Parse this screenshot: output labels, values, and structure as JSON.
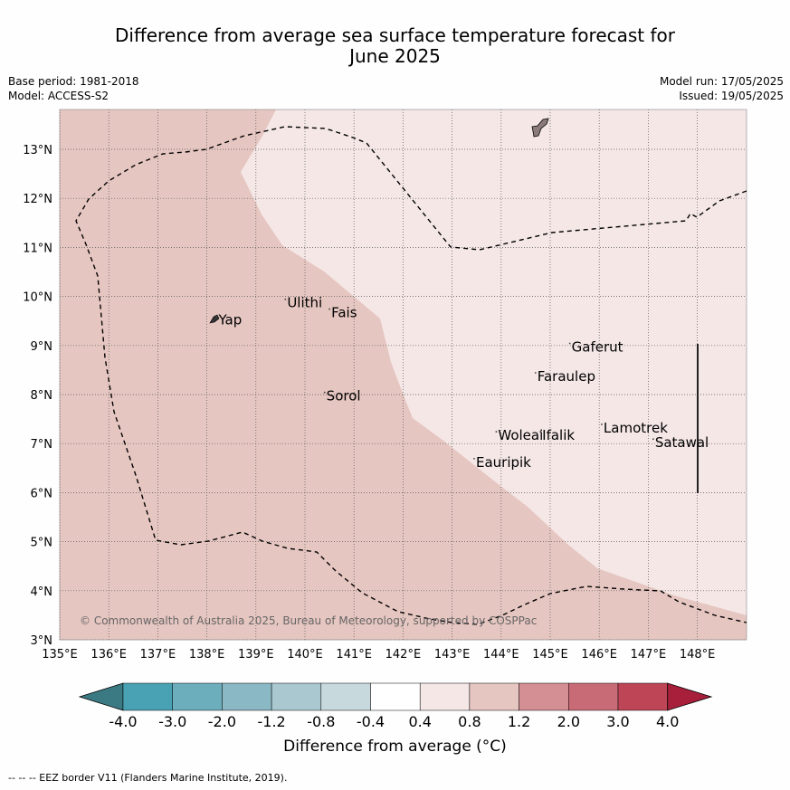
{
  "title_line1": "Difference from average sea surface temperature forecast for",
  "title_line2": "June 2025",
  "base_period": "Base period: 1981-2018",
  "model": "Model: ACCESS-S2",
  "model_run": "Model run: 17/05/2025",
  "issued": "Issued: 19/05/2025",
  "copyright": "© Commonwealth of Australia 2025, Bureau of Meteorology, supported by COSPPac",
  "colorbar_label": "Difference from average (°C)",
  "colorbar_ticks": [
    "-4.0",
    "-3.0",
    "-2.0",
    "-1.2",
    "-0.8",
    "-0.4",
    "0.4",
    "0.8",
    "1.2",
    "2.0",
    "3.0",
    "4.0"
  ],
  "colorbar_colors": [
    "#3b7a83",
    "#48a2b4",
    "#6daebd",
    "#8ab8c4",
    "#a9c8cf",
    "#c8d9dd",
    "#ffffff",
    "#f4e7e6",
    "#e6c6c1",
    "#d48f95",
    "#c96b76",
    "#be4556",
    "#a81f3b"
  ],
  "lon_ticks": [
    "135°E",
    "136°E",
    "137°E",
    "138°E",
    "139°E",
    "140°E",
    "141°E",
    "142°E",
    "143°E",
    "144°E",
    "145°E",
    "146°E",
    "147°E",
    "148°E"
  ],
  "lat_ticks": [
    "3°N",
    "4°N",
    "5°N",
    "6°N",
    "7°N",
    "8°N",
    "9°N",
    "10°N",
    "11°N",
    "12°N",
    "13°N"
  ],
  "islands": [
    {
      "name": "Yap",
      "lon": 138.2,
      "lat": 9.5
    },
    {
      "name": "Ulithi",
      "lon": 139.6,
      "lat": 9.85
    },
    {
      "name": "Fais",
      "lon": 140.5,
      "lat": 9.65
    },
    {
      "name": "Sorol",
      "lon": 140.4,
      "lat": 7.95
    },
    {
      "name": "Gaferut",
      "lon": 145.4,
      "lat": 8.95
    },
    {
      "name": "Faraulep",
      "lon": 144.7,
      "lat": 8.35
    },
    {
      "name": "Woleai",
      "lon": 143.9,
      "lat": 7.15
    },
    {
      "name": "Ifalik",
      "lon": 144.8,
      "lat": 7.15
    },
    {
      "name": "Lamotrek",
      "lon": 146.05,
      "lat": 7.3
    },
    {
      "name": "Satawal",
      "lon": 147.1,
      "lat": 7.0
    },
    {
      "name": "Eauripik",
      "lon": 143.45,
      "lat": 6.6
    }
  ],
  "footnote": "--  --  -- EEZ border V11 (Flanders Marine Institute, 2019)."
}
